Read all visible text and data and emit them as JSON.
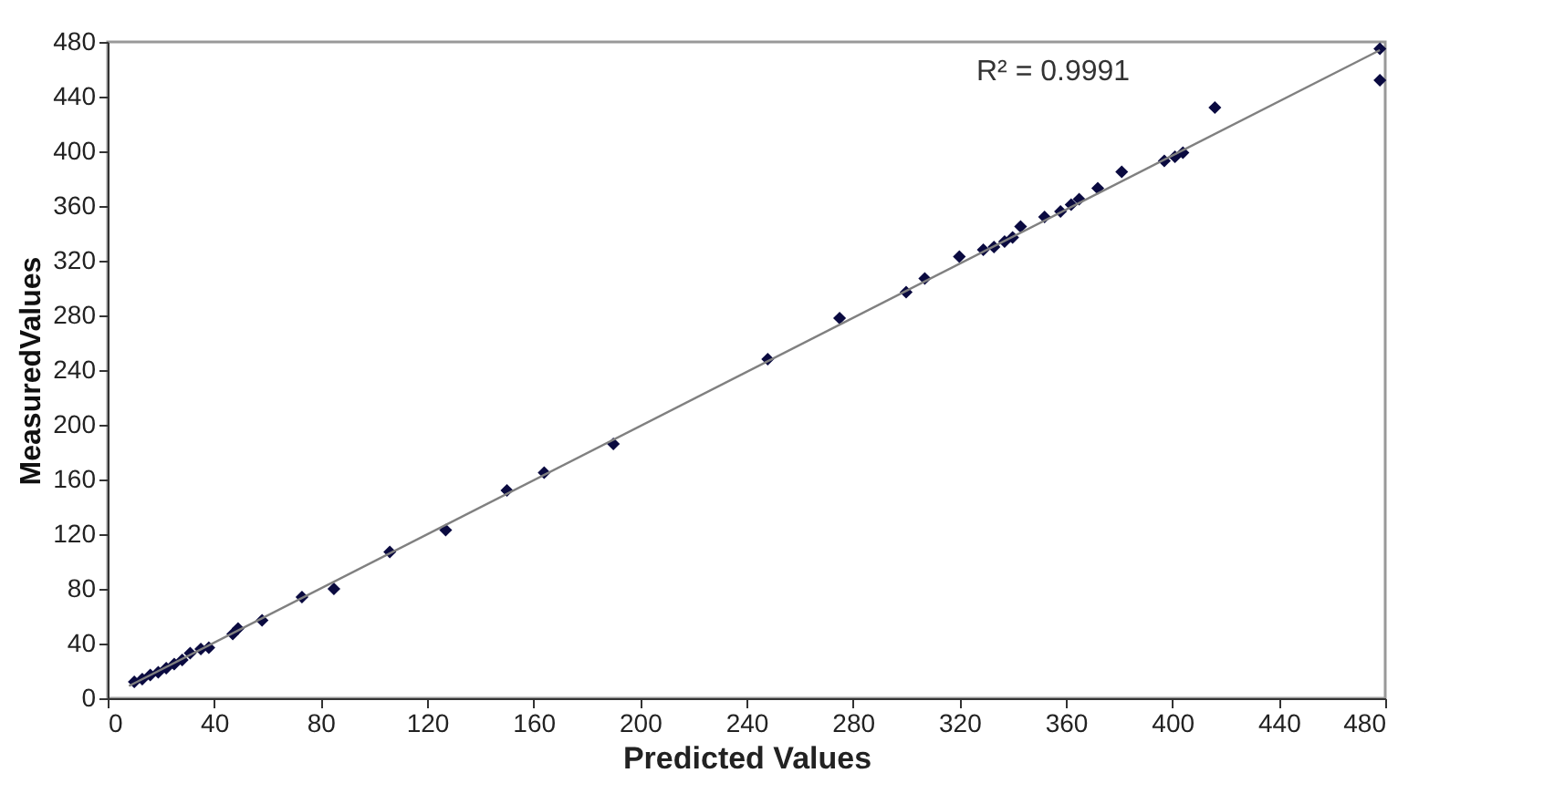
{
  "chart_data": {
    "type": "scatter",
    "xlabel": "Predicted Values",
    "ylabel": "MeasuredValues",
    "annotations": [
      "R² = 0.9991"
    ],
    "grid": false,
    "xlim": [
      0,
      480
    ],
    "ylim": [
      0,
      480
    ],
    "xticks": [
      0,
      40,
      80,
      120,
      160,
      200,
      240,
      280,
      320,
      360,
      400,
      440,
      480
    ],
    "yticks": [
      0,
      40,
      80,
      120,
      160,
      200,
      240,
      280,
      320,
      360,
      400,
      440,
      480
    ],
    "series": [
      {
        "marker": "diamond",
        "color": "#0a0a40",
        "x": [
          10,
          13,
          16,
          19,
          22,
          25,
          28,
          31,
          35,
          38,
          47,
          49,
          58,
          73,
          85,
          106,
          127,
          150,
          164,
          190,
          248,
          275,
          300,
          307,
          320,
          329,
          333,
          337,
          340,
          343,
          352,
          358,
          362,
          365,
          372,
          381,
          397,
          401,
          404,
          416,
          478,
          478
        ],
        "values": [
          12,
          14,
          17,
          19,
          22,
          25,
          28,
          33,
          36,
          37,
          47,
          51,
          57,
          74,
          80,
          107,
          123,
          152,
          165,
          186,
          248,
          278,
          297,
          307,
          323,
          328,
          330,
          334,
          337,
          345,
          352,
          356,
          361,
          365,
          373,
          385,
          393,
          396,
          399,
          432,
          475,
          452
        ]
      },
      {
        "type": "line",
        "color": "#808080",
        "x": [
          8,
          478
        ],
        "values": [
          9,
          474
        ]
      }
    ]
  }
}
